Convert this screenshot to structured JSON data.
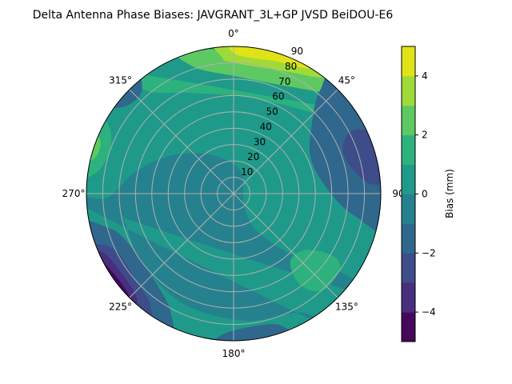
{
  "chart_data": {
    "type": "polar-contour",
    "title": "Delta Antenna Phase Biases: JAVGRANT_3L+GP  JVSD BeiDOU-E6",
    "angle_ticks": [
      {
        "deg": 0,
        "label": "0°"
      },
      {
        "deg": 45,
        "label": "45°"
      },
      {
        "deg": 90,
        "label": "90"
      },
      {
        "deg": 135,
        "label": "135°"
      },
      {
        "deg": 180,
        "label": "180°"
      },
      {
        "deg": 225,
        "label": "225°"
      },
      {
        "deg": 270,
        "label": "270°"
      },
      {
        "deg": 315,
        "label": "315°"
      }
    ],
    "radial_ticks": [
      "10",
      "20",
      "30",
      "40",
      "50",
      "60",
      "70",
      "80",
      "90"
    ],
    "radial_range": [
      0,
      90
    ],
    "theta_direction": "clockwise",
    "theta_zero": "north",
    "grid": true,
    "colorbar": {
      "label": "Bias (mm)",
      "range": [
        -5,
        5
      ],
      "ticks": [
        {
          "value": 4,
          "label": "4"
        },
        {
          "value": 2,
          "label": "2"
        },
        {
          "value": 0,
          "label": "0"
        },
        {
          "value": -2,
          "label": "−2"
        },
        {
          "value": -4,
          "label": "−4"
        }
      ],
      "levels": [
        -5,
        -4,
        -3,
        -2,
        -1,
        0,
        1,
        2,
        3,
        4,
        5
      ],
      "colors": [
        "#46085c",
        "#472f7d",
        "#3e4c8a",
        "#30678d",
        "#26818e",
        "#1f9a8a",
        "#2db27d",
        "#5ec962",
        "#a0da39",
        "#dfe318"
      ]
    },
    "background_level": [
      0,
      1
    ],
    "regions": [
      {
        "level": [
          -1,
          0
        ],
        "points": [
          [
            268,
            100
          ],
          [
            268,
            78
          ],
          [
            282,
            62
          ],
          [
            300,
            46
          ],
          [
            320,
            32
          ],
          [
            345,
            22
          ],
          [
            20,
            14
          ],
          [
            80,
            6
          ],
          [
            130,
            8
          ],
          [
            150,
            22
          ],
          [
            142,
            38
          ],
          [
            134,
            58
          ],
          [
            126,
            84
          ],
          [
            128,
            100
          ]
        ]
      },
      {
        "level": [
          -1,
          0
        ],
        "points": [
          [
            145,
            100
          ],
          [
            150,
            84
          ],
          [
            175,
            78
          ],
          [
            205,
            74
          ],
          [
            235,
            70
          ],
          [
            262,
            72
          ],
          [
            268,
            100
          ]
        ]
      },
      {
        "level": [
          1,
          2
        ],
        "points": [
          [
            318,
            100
          ],
          [
            320,
            82
          ],
          [
            335,
            68
          ],
          [
            0,
            60
          ],
          [
            28,
            62
          ],
          [
            48,
            72
          ],
          [
            58,
            86
          ],
          [
            62,
            100
          ]
        ]
      },
      {
        "level": [
          2,
          3
        ],
        "points": [
          [
            338,
            100
          ],
          [
            342,
            82
          ],
          [
            0,
            72
          ],
          [
            28,
            74
          ],
          [
            44,
            86
          ],
          [
            48,
            100
          ]
        ]
      },
      {
        "level": [
          3,
          4
        ],
        "points": [
          [
            352,
            100
          ],
          [
            355,
            84
          ],
          [
            0,
            80
          ],
          [
            22,
            81
          ],
          [
            38,
            90
          ],
          [
            40,
            100
          ]
        ]
      },
      {
        "level": [
          4,
          5
        ],
        "points": [
          [
            0,
            100
          ],
          [
            0,
            86
          ],
          [
            18,
            85
          ],
          [
            32,
            90
          ],
          [
            34,
            100
          ]
        ]
      },
      {
        "level": [
          1,
          2
        ],
        "points": [
          [
            276,
            100
          ],
          [
            278,
            86
          ],
          [
            288,
            80
          ],
          [
            298,
            86
          ],
          [
            300,
            100
          ]
        ]
      },
      {
        "level": [
          2,
          3
        ],
        "points": [
          [
            281,
            100
          ],
          [
            284,
            88
          ],
          [
            292,
            88
          ],
          [
            294,
            100
          ]
        ]
      },
      {
        "level": [
          -2,
          -1
        ],
        "points": [
          [
            40,
            82
          ],
          [
            50,
            62
          ],
          [
            65,
            52
          ],
          [
            85,
            56
          ],
          [
            100,
            74
          ],
          [
            102,
            100
          ],
          [
            42,
            100
          ]
        ]
      },
      {
        "level": [
          -3,
          -2
        ],
        "points": [
          [
            62,
            82
          ],
          [
            68,
            72
          ],
          [
            78,
            74
          ],
          [
            86,
            84
          ],
          [
            84,
            95
          ],
          [
            68,
            94
          ]
        ]
      },
      {
        "level": [
          -2,
          -1
        ],
        "points": [
          [
            304,
            100
          ],
          [
            308,
            86
          ],
          [
            318,
            84
          ],
          [
            322,
            100
          ]
        ]
      },
      {
        "level": [
          1,
          2
        ],
        "points": [
          [
            122,
            72
          ],
          [
            128,
            56
          ],
          [
            140,
            54
          ],
          [
            144,
            68
          ],
          [
            138,
            80
          ],
          [
            126,
            80
          ]
        ]
      },
      {
        "level": [
          -2,
          -1
        ],
        "points": [
          [
            158,
            100
          ],
          [
            160,
            86
          ],
          [
            172,
            82
          ],
          [
            186,
            88
          ],
          [
            188,
            100
          ]
        ]
      },
      {
        "level": [
          -2,
          -1
        ],
        "points": [
          [
            204,
            100
          ],
          [
            208,
            82
          ],
          [
            222,
            72
          ],
          [
            240,
            70
          ],
          [
            254,
            78
          ],
          [
            258,
            100
          ]
        ]
      },
      {
        "level": [
          -3,
          -2
        ],
        "points": [
          [
            214,
            100
          ],
          [
            216,
            86
          ],
          [
            228,
            80
          ],
          [
            244,
            80
          ],
          [
            250,
            90
          ],
          [
            250,
            100
          ]
        ]
      },
      {
        "level": [
          -4,
          -3
        ],
        "points": [
          [
            220,
            100
          ],
          [
            222,
            88
          ],
          [
            234,
            84
          ],
          [
            246,
            88
          ],
          [
            247,
            100
          ]
        ]
      },
      {
        "level": [
          -5,
          -4
        ],
        "points": [
          [
            223,
            100
          ],
          [
            225,
            90
          ],
          [
            236,
            88
          ],
          [
            244,
            92
          ],
          [
            244,
            100
          ]
        ]
      },
      {
        "level": "nan",
        "points": [
          [
            229,
            100
          ],
          [
            231,
            92
          ],
          [
            240,
            90
          ],
          [
            246,
            94
          ],
          [
            247,
            100
          ]
        ]
      }
    ]
  }
}
